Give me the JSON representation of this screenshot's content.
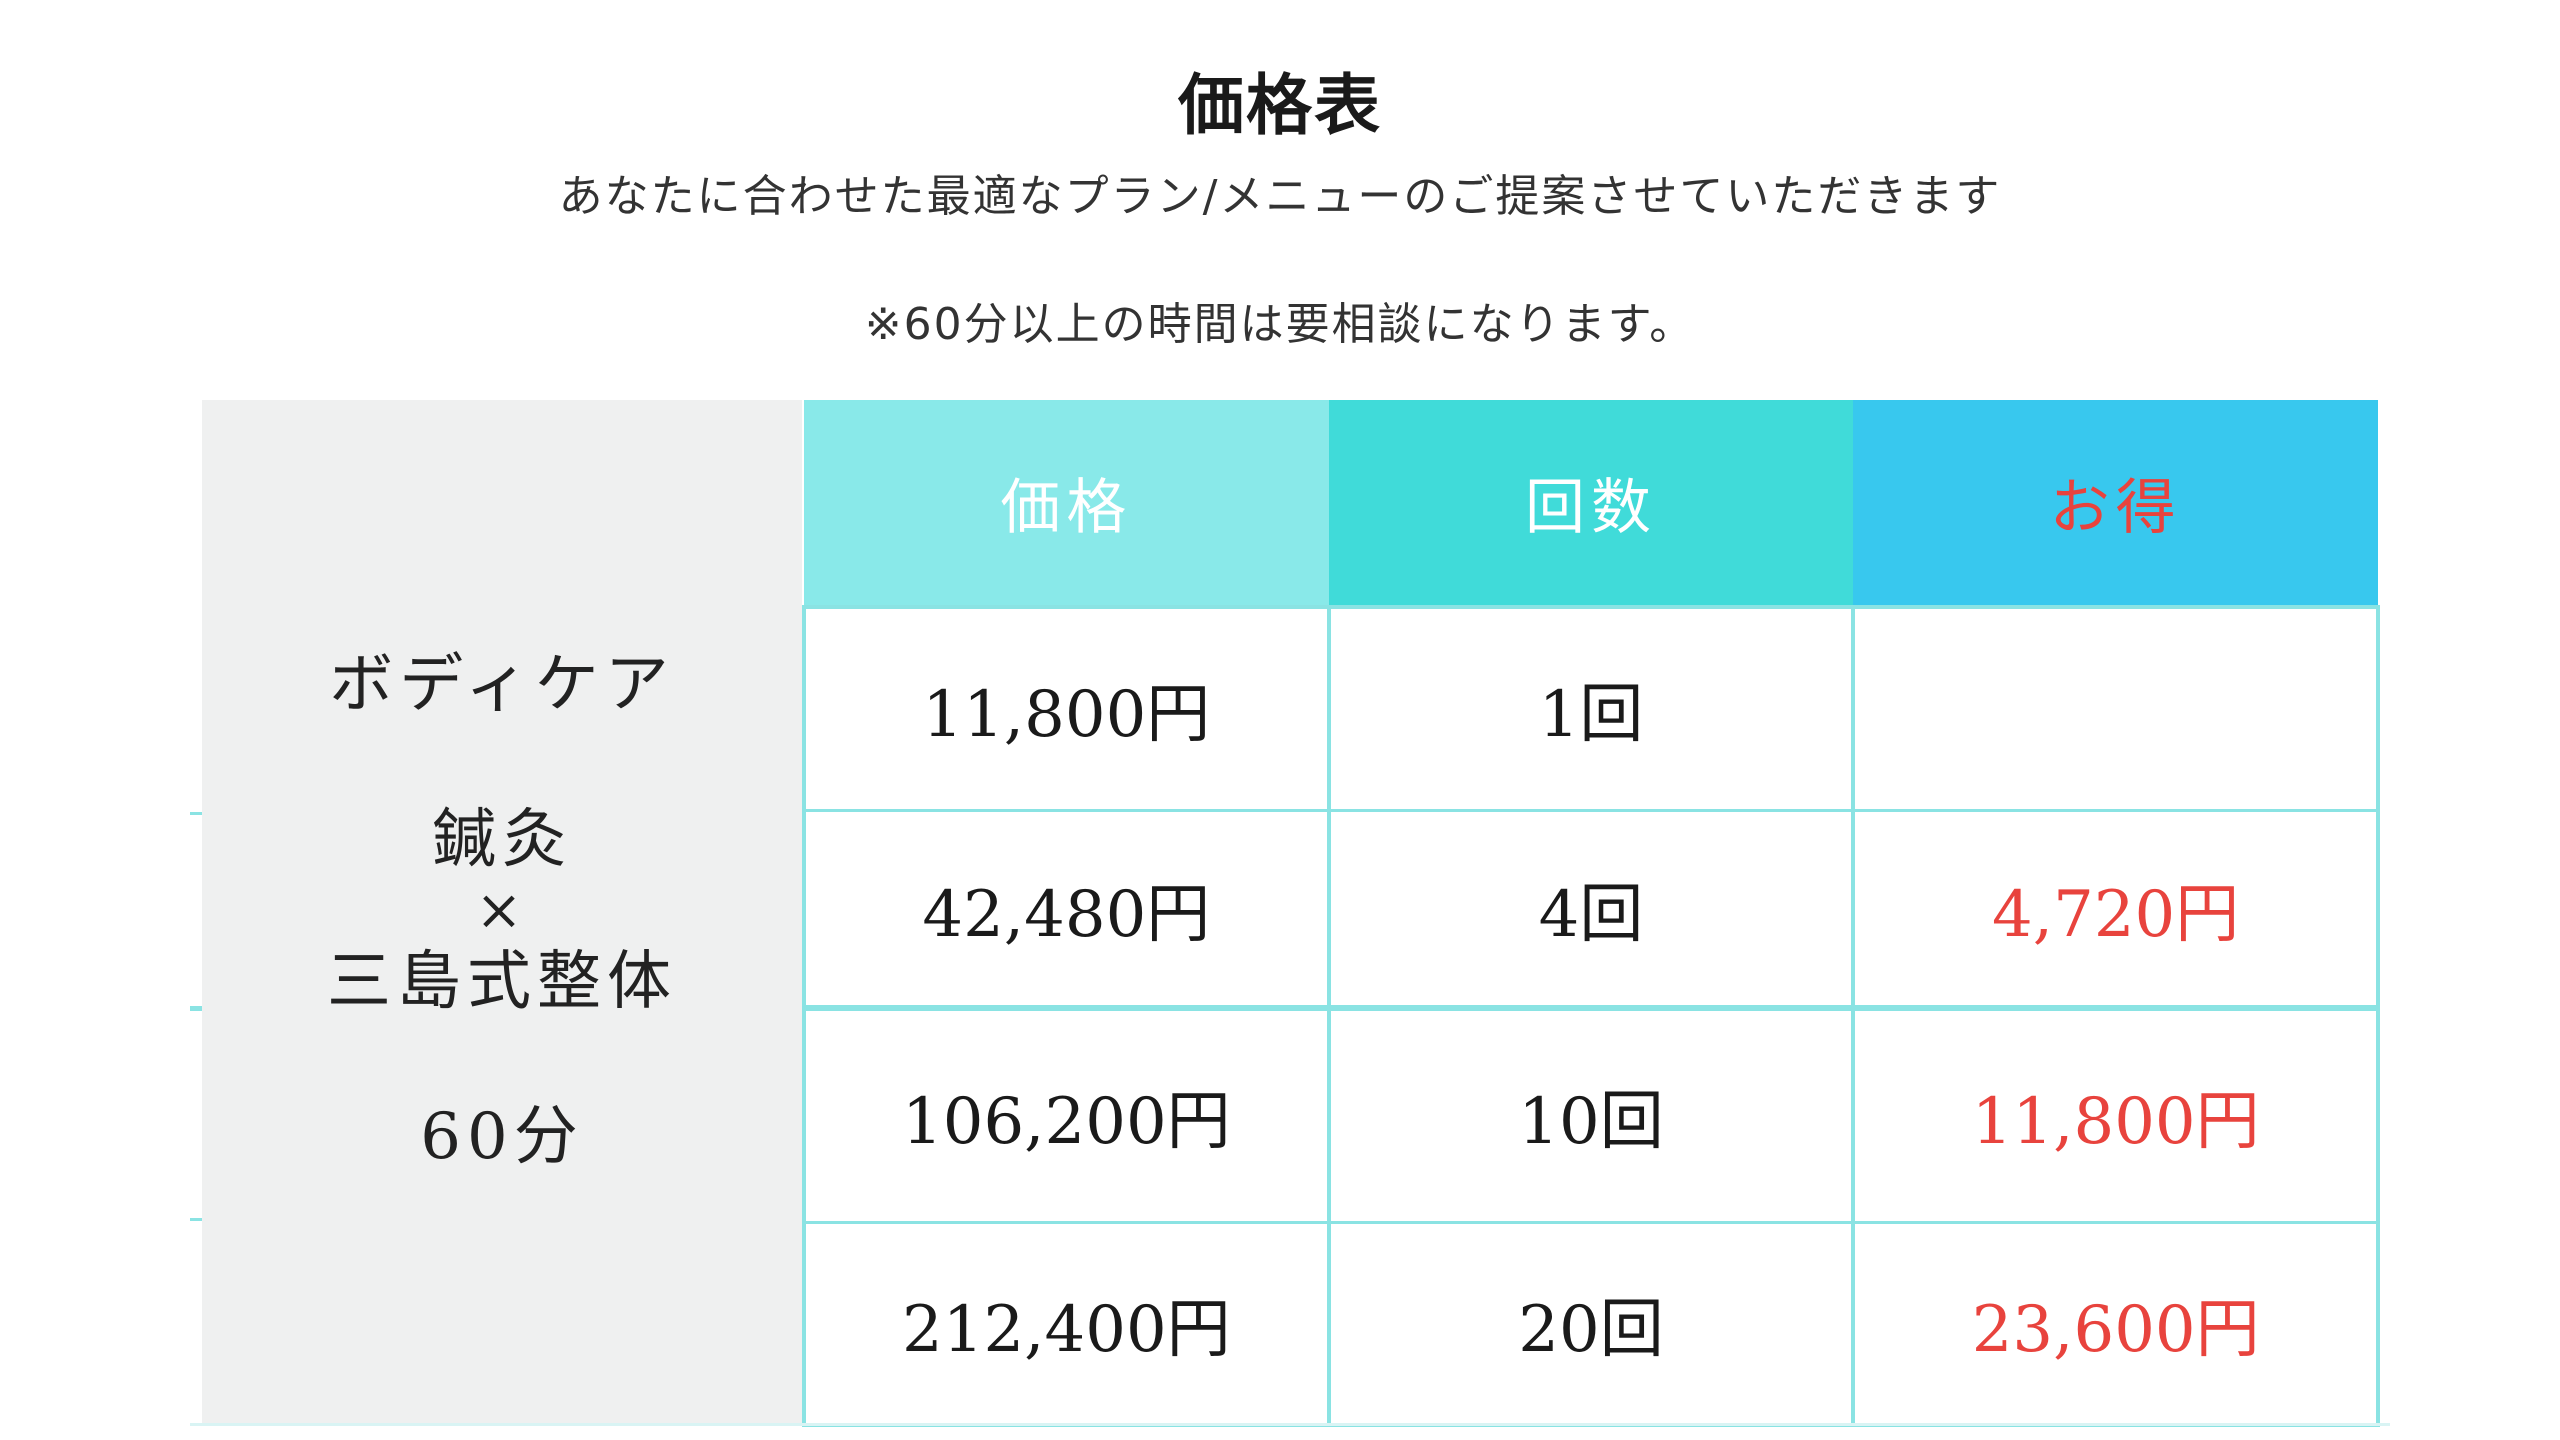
{
  "header": {
    "title": "価格表",
    "subtitle": "あなたに合わせた最適なプラン/メニューのご提案させていただきます",
    "note": "※60分以上の時間は要相談になります。"
  },
  "menu": {
    "line1": "ボディケア",
    "line2": "鍼灸",
    "line3": "×",
    "line4": "三島式整体",
    "line5": "60分"
  },
  "table": {
    "headers": {
      "price": "価格",
      "count": "回数",
      "savings": "お得"
    },
    "rows": [
      {
        "price": "11,800円",
        "count": "1回",
        "savings": ""
      },
      {
        "price": "42,480円",
        "count": "4回",
        "savings": "4,720円"
      },
      {
        "price": "106,200円",
        "count": "10回",
        "savings": "11,800円"
      },
      {
        "price": "212,400円",
        "count": "20回",
        "savings": "23,600円"
      }
    ]
  },
  "colors": {
    "header_price_bg": "#89e9e9",
    "header_count_bg": "#40dbd9",
    "header_savings_bg": "#38c8ee",
    "savings_text": "#e8433d",
    "grid_line": "#8ae3e3",
    "menu_panel_bg": "#eff0f0"
  }
}
